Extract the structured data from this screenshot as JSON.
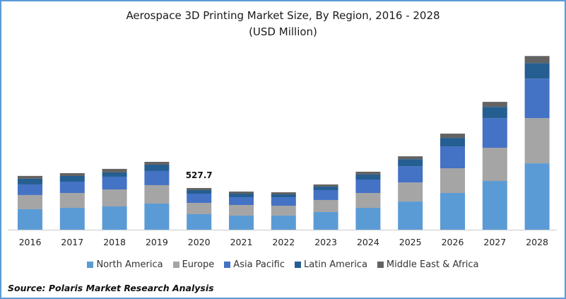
{
  "chart_data": {
    "type": "bar",
    "stacked": true,
    "title": "Aerospace 3D Printing Market Size, By Region, 2016 - 2028",
    "subtitle": "(USD Million)",
    "xlabel": "",
    "ylabel": "",
    "categories": [
      "2016",
      "2017",
      "2018",
      "2019",
      "2020",
      "2021",
      "2022",
      "2023",
      "2024",
      "2025",
      "2026",
      "2027",
      "2028"
    ],
    "series": [
      {
        "name": "North America",
        "color": "#5b9bd5",
        "values": [
          260,
          277,
          295,
          331,
          197,
          179,
          179,
          224,
          277,
          357,
          465,
          617,
          840
        ]
      },
      {
        "name": "Europe",
        "color": "#a5a5a5",
        "values": [
          179,
          188,
          215,
          233,
          143,
          134,
          125,
          152,
          188,
          241,
          313,
          420,
          572
        ]
      },
      {
        "name": "Asia Pacific",
        "color": "#4472c4",
        "values": [
          134,
          143,
          161,
          179,
          116,
          98,
          107,
          125,
          170,
          206,
          277,
          375,
          500
        ]
      },
      {
        "name": "Latin America",
        "color": "#255e91",
        "values": [
          72,
          72,
          54,
          80,
          45,
          45,
          36,
          45,
          63,
          89,
          107,
          143,
          197
        ]
      },
      {
        "name": "Middle East & Africa",
        "color": "#636363",
        "values": [
          36,
          36,
          45,
          36,
          27,
          27,
          27,
          27,
          36,
          36,
          54,
          63,
          89
        ]
      }
    ],
    "data_labels": [
      {
        "category": "2020",
        "text": "527.7"
      }
    ],
    "ylim": [
      0,
      2200
    ],
    "grid": false,
    "legend": "bottom"
  },
  "source": "Source: Polaris  Market Research Analysis"
}
